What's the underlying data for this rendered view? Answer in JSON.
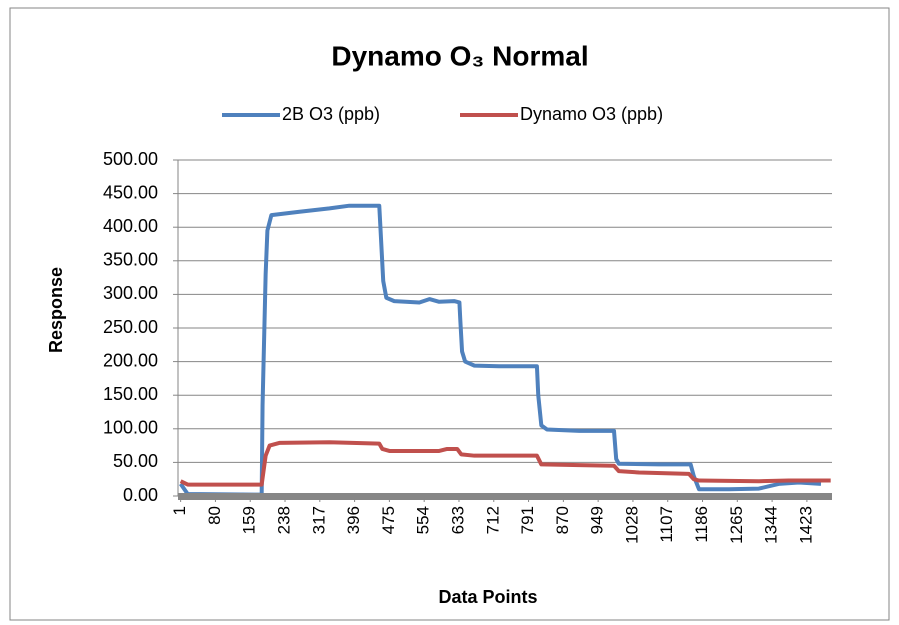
{
  "chart_data": {
    "type": "line",
    "title": "Dynamo O₃ Normal",
    "x_label": "Data Points",
    "y_label": "Response",
    "xlim": [
      -5,
      1480
    ],
    "xticks": [
      1,
      80,
      159,
      238,
      317,
      396,
      475,
      554,
      633,
      712,
      791,
      870,
      949,
      1028,
      1107,
      1186,
      1265,
      1344,
      1423
    ],
    "ylim": [
      0,
      500
    ],
    "yticks": [
      {
        "value": 0,
        "label": "0.00"
      },
      {
        "value": 50,
        "label": "50.00"
      },
      {
        "value": 100,
        "label": "100.00"
      },
      {
        "value": 150,
        "label": "150.00"
      },
      {
        "value": 200,
        "label": "200.00"
      },
      {
        "value": 250,
        "label": "250.00"
      },
      {
        "value": 300,
        "label": "300.00"
      },
      {
        "value": 350,
        "label": "350.00"
      },
      {
        "value": 400,
        "label": "400.00"
      },
      {
        "value": 450,
        "label": "450.00"
      },
      {
        "value": 500,
        "label": "500.00"
      }
    ],
    "grid": true,
    "legend": "top",
    "series": [
      {
        "name": "2B O3 (ppb)",
        "color": "#4f81bd",
        "x": [
          1,
          17,
          185,
          187,
          194,
          198,
          207,
          271,
          339,
          384,
          452,
          455,
          461,
          468,
          486,
          543,
          566,
          588,
          622,
          634,
          636,
          640,
          647,
          668,
          724,
          810,
          813,
          820,
          833,
          906,
          985,
          990,
          996,
          1087,
          1159,
          1166,
          1178,
          1246,
          1314,
          1359,
          1405,
          1455
        ],
        "values": [
          18,
          3,
          2,
          135,
          330,
          395,
          418,
          423,
          428,
          432,
          432,
          395,
          320,
          295,
          290,
          288,
          293,
          289,
          290,
          288,
          262,
          215,
          200,
          194,
          193,
          193,
          150,
          105,
          99,
          97,
          97,
          55,
          48,
          47,
          47,
          30,
          10,
          10,
          11,
          18,
          20,
          18
        ]
      },
      {
        "name": "Dynamo O3 (ppb)",
        "color": "#c0504d",
        "x": [
          1,
          17,
          185,
          194,
          203,
          225,
          339,
          452,
          459,
          475,
          588,
          606,
          629,
          638,
          668,
          810,
          820,
          906,
          985,
          996,
          1042,
          1155,
          1166,
          1178,
          1314,
          1382,
          1477
        ],
        "values": [
          22,
          17,
          17,
          60,
          75,
          79,
          80,
          78,
          70,
          67,
          67,
          70,
          70,
          62,
          60,
          60,
          47,
          46,
          45,
          37,
          35,
          33,
          25,
          23,
          22,
          23,
          23
        ]
      }
    ]
  }
}
